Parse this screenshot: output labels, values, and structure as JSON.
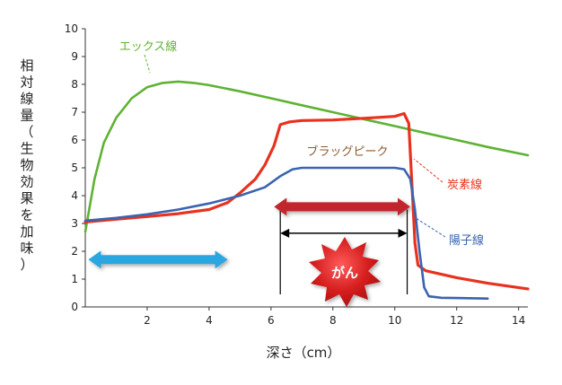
{
  "chart_data": {
    "type": "line",
    "title": "",
    "xlabel": "深さ（cm）",
    "ylabel": "相対線量（生物効果を加味）",
    "xlim": [
      0,
      14.3
    ],
    "ylim": [
      0,
      10
    ],
    "xticks": [
      2,
      4,
      6,
      8,
      10,
      12,
      14
    ],
    "yticks": [
      0,
      1,
      2,
      3,
      4,
      5,
      6,
      7,
      8,
      9,
      10
    ],
    "grid": false,
    "series": [
      {
        "name": "エックス線",
        "color": "#5fb233",
        "points": [
          [
            0.0,
            2.7
          ],
          [
            0.3,
            4.6
          ],
          [
            0.6,
            5.9
          ],
          [
            1.0,
            6.8
          ],
          [
            1.5,
            7.5
          ],
          [
            2.0,
            7.9
          ],
          [
            2.5,
            8.05
          ],
          [
            3.0,
            8.1
          ],
          [
            3.5,
            8.05
          ],
          [
            4.0,
            7.97
          ],
          [
            5.0,
            7.75
          ],
          [
            6.0,
            7.5
          ],
          [
            7.0,
            7.25
          ],
          [
            8.0,
            7.0
          ],
          [
            9.0,
            6.75
          ],
          [
            10.0,
            6.5
          ],
          [
            11.0,
            6.25
          ],
          [
            12.0,
            6.0
          ],
          [
            13.0,
            5.75
          ],
          [
            14.3,
            5.45
          ]
        ]
      },
      {
        "name": "炭素線",
        "color": "#e8321f",
        "points": [
          [
            0.0,
            3.05
          ],
          [
            1.0,
            3.15
          ],
          [
            2.0,
            3.25
          ],
          [
            3.0,
            3.35
          ],
          [
            4.0,
            3.5
          ],
          [
            4.6,
            3.75
          ],
          [
            5.0,
            4.1
          ],
          [
            5.5,
            4.6
          ],
          [
            5.8,
            5.1
          ],
          [
            6.1,
            5.8
          ],
          [
            6.3,
            6.55
          ],
          [
            6.6,
            6.65
          ],
          [
            7.0,
            6.7
          ],
          [
            8.0,
            6.72
          ],
          [
            9.0,
            6.78
          ],
          [
            10.0,
            6.85
          ],
          [
            10.3,
            6.95
          ],
          [
            10.45,
            6.6
          ],
          [
            10.55,
            4.5
          ],
          [
            10.65,
            2.3
          ],
          [
            10.75,
            1.5
          ],
          [
            11.0,
            1.3
          ],
          [
            12.0,
            1.05
          ],
          [
            13.0,
            0.85
          ],
          [
            14.3,
            0.65
          ]
        ]
      },
      {
        "name": "陽子線",
        "color": "#3a63b0",
        "points": [
          [
            0.0,
            3.1
          ],
          [
            1.0,
            3.2
          ],
          [
            2.0,
            3.33
          ],
          [
            3.0,
            3.5
          ],
          [
            4.0,
            3.72
          ],
          [
            5.0,
            4.0
          ],
          [
            5.8,
            4.3
          ],
          [
            6.3,
            4.7
          ],
          [
            6.7,
            4.95
          ],
          [
            7.0,
            5.0
          ],
          [
            8.0,
            5.0
          ],
          [
            9.0,
            5.0
          ],
          [
            10.0,
            5.0
          ],
          [
            10.3,
            4.95
          ],
          [
            10.5,
            4.6
          ],
          [
            10.65,
            3.5
          ],
          [
            10.8,
            2.0
          ],
          [
            10.95,
            0.7
          ],
          [
            11.1,
            0.38
          ],
          [
            11.5,
            0.33
          ],
          [
            12.0,
            0.32
          ],
          [
            13.0,
            0.3
          ]
        ]
      }
    ],
    "annotations": [
      {
        "text": "エックス線",
        "color": "#5fb233",
        "target": [
          2.15,
          8.55
        ]
      },
      {
        "text": "ブラッグピーク",
        "color": "#8c5a2a"
      },
      {
        "text": "炭素線",
        "color": "#e8321f",
        "target": [
          10.5,
          5.5
        ]
      },
      {
        "text": "陽子線",
        "color": "#3a63b0",
        "target": [
          10.55,
          3.0
        ]
      },
      {
        "text": "がん",
        "color": "#ffffff",
        "fill": "#d41c1c"
      }
    ],
    "arrows": [
      {
        "type": "double-block",
        "from": 0.1,
        "to": 4.6,
        "y": 1.7,
        "color": "#2aa7e0"
      },
      {
        "type": "double-block",
        "from": 6.1,
        "to": 10.5,
        "y": 3.6,
        "color": "#c1282d"
      },
      {
        "type": "double-line",
        "from": 6.3,
        "to": 10.4,
        "y": 2.65,
        "color": "#000000"
      }
    ],
    "vlines": [
      6.3,
      10.4
    ]
  }
}
